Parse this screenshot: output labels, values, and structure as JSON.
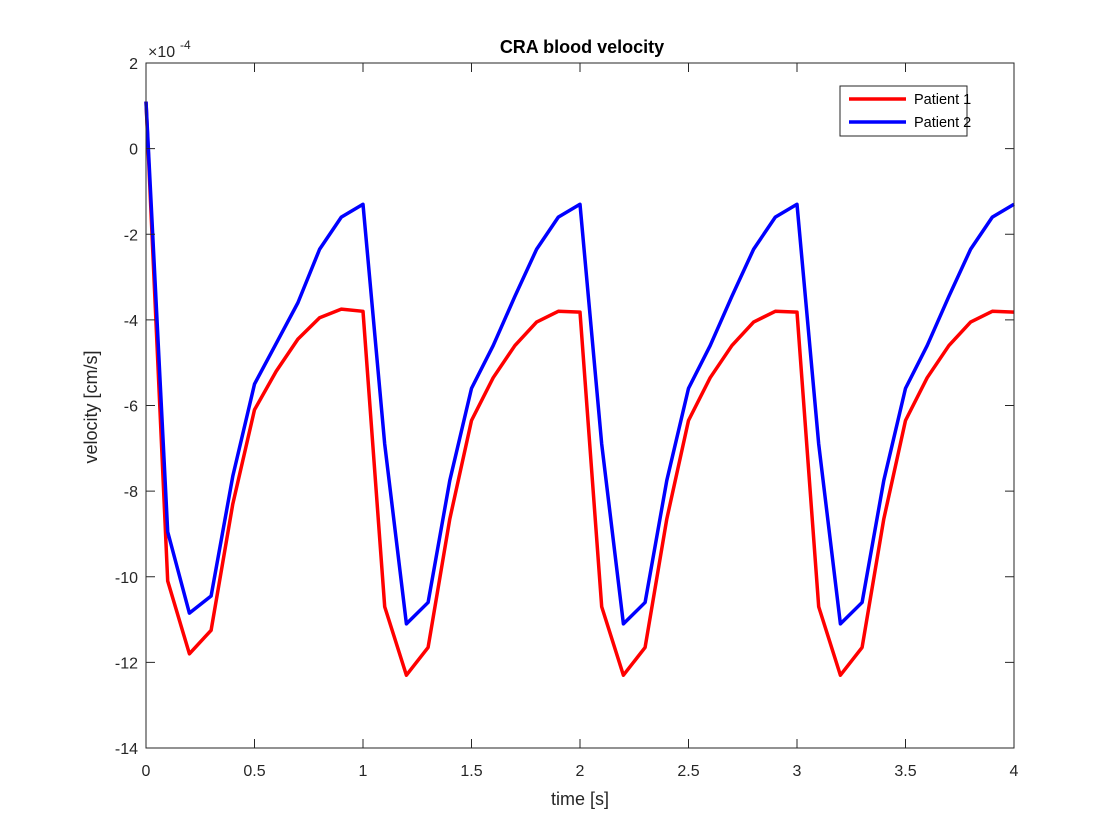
{
  "chart_data": {
    "type": "line",
    "title": "CRA blood velocity",
    "xlabel": "time [s]",
    "ylabel": "velocity [cm/s]",
    "y_exponent_label": "×10",
    "y_exponent_power": "-4",
    "xlim": [
      0,
      4
    ],
    "ylim": [
      -14,
      2
    ],
    "xticks": [
      0,
      0.5,
      1,
      1.5,
      2,
      2.5,
      3,
      3.5,
      4
    ],
    "xtick_labels": [
      "0",
      "0.5",
      "1",
      "1.5",
      "2",
      "2.5",
      "3",
      "3.5",
      "4"
    ],
    "yticks": [
      -14,
      -12,
      -10,
      -8,
      -6,
      -4,
      -2,
      0,
      2
    ],
    "ytick_labels": [
      "-14",
      "-12",
      "-10",
      "-8",
      "-6",
      "-4",
      "-2",
      "0",
      "2"
    ],
    "grid": false,
    "legend_position": "top-right",
    "x": [
      0,
      0.1,
      0.2,
      0.3,
      0.4,
      0.5,
      0.6,
      0.7,
      0.8,
      0.9,
      1.0,
      1.1,
      1.2,
      1.3,
      1.4,
      1.5,
      1.6,
      1.7,
      1.8,
      1.9,
      2.0,
      2.1,
      2.2,
      2.3,
      2.4,
      2.5,
      2.6,
      2.7,
      2.8,
      2.9,
      3.0,
      3.1,
      3.2,
      3.3,
      3.4,
      3.5,
      3.6,
      3.7,
      3.8,
      3.9,
      4.0
    ],
    "series": [
      {
        "name": "Patient 1",
        "color": "#ff0000",
        "values": [
          1.1,
          -10.1,
          -11.8,
          -11.25,
          -8.3,
          -6.1,
          -5.2,
          -4.45,
          -3.95,
          -3.75,
          -3.8,
          -10.7,
          -12.3,
          -11.65,
          -8.65,
          -6.35,
          -5.35,
          -4.6,
          -4.05,
          -3.8,
          -3.82,
          -10.7,
          -12.3,
          -11.65,
          -8.65,
          -6.35,
          -5.35,
          -4.6,
          -4.05,
          -3.8,
          -3.82,
          -10.7,
          -12.3,
          -11.65,
          -8.65,
          -6.35,
          -5.35,
          -4.6,
          -4.05,
          -3.8,
          -3.82
        ]
      },
      {
        "name": "Patient 2",
        "color": "#0000ff",
        "values": [
          1.1,
          -8.95,
          -10.85,
          -10.45,
          -7.65,
          -5.5,
          -4.55,
          -3.6,
          -2.35,
          -1.6,
          -1.3,
          -6.9,
          -11.1,
          -10.6,
          -7.75,
          -5.6,
          -4.6,
          -3.45,
          -2.35,
          -1.6,
          -1.3,
          -6.9,
          -11.1,
          -10.6,
          -7.75,
          -5.6,
          -4.6,
          -3.45,
          -2.35,
          -1.6,
          -1.3,
          -6.9,
          -11.1,
          -10.6,
          -7.75,
          -5.6,
          -4.6,
          -3.45,
          -2.35,
          -1.6,
          -1.3
        ]
      }
    ]
  }
}
